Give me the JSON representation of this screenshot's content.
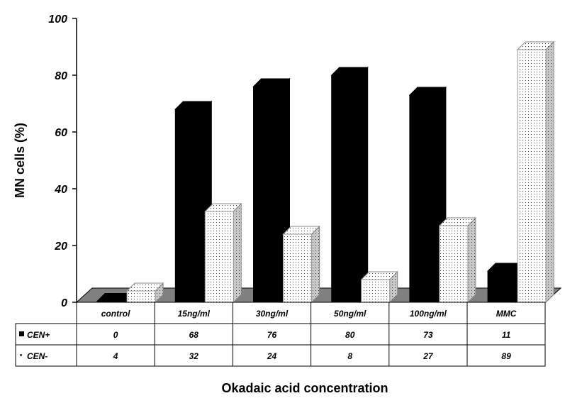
{
  "chart_data": {
    "type": "bar",
    "title": "",
    "xlabel": "Okadaic acid concentration",
    "ylabel": "MN cells (%)",
    "ylim": [
      0,
      100
    ],
    "yticks": [
      "0",
      "20",
      "40",
      "60",
      "80",
      "100"
    ],
    "categories": [
      "control",
      "15ng/ml",
      "30ng/ml",
      "50ng/ml",
      "100ng/ml",
      "MMC"
    ],
    "series": [
      {
        "name": "CEN+",
        "values": [
          0,
          68,
          76,
          80,
          73,
          11
        ],
        "table_values": [
          "0",
          "68",
          "76",
          "80",
          "73",
          "11"
        ],
        "color": "#000000"
      },
      {
        "name": "CEN-",
        "values": [
          4,
          32,
          24,
          8,
          27,
          89
        ],
        "table_values": [
          "4",
          "32",
          "24",
          "8",
          "27",
          "89"
        ],
        "color": "#ffffff"
      }
    ],
    "legend_placement": "data table below chart",
    "grid": false
  }
}
